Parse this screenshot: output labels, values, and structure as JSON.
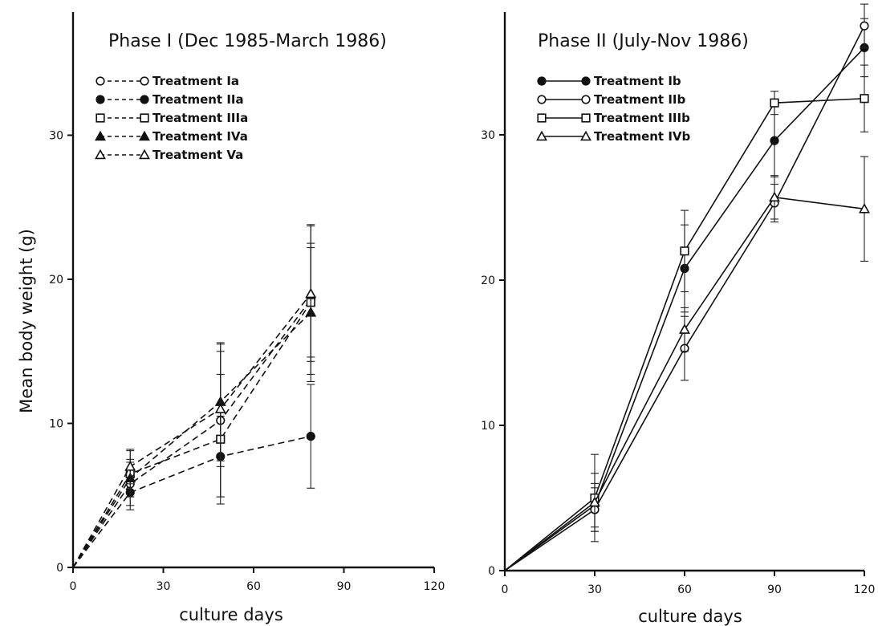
{
  "chart_data": [
    {
      "type": "line",
      "title": "Phase I (Dec 1985-March 1986)",
      "xlabel": "culture days",
      "ylabel": "Mean body weight (g)",
      "xlim": [
        0,
        120
      ],
      "ylim": [
        0,
        38
      ],
      "xticks": [
        0,
        30,
        60,
        90,
        120
      ],
      "yticks": [
        0,
        10,
        20,
        30
      ],
      "x_tick_labels": [
        "0",
        "30",
        "60",
        "90",
        "120"
      ],
      "y_tick_labels": [
        "0",
        "10",
        "20",
        "30"
      ],
      "line_style": "dashed",
      "legend_position": "upper-left",
      "series": [
        {
          "name": "Treatment Ia",
          "marker": "circle-open",
          "x": [
            0,
            19,
            49,
            79
          ],
          "y": [
            0,
            5.8,
            10.2,
            18.6
          ],
          "err": [
            0,
            1.5,
            5.3,
            5.2
          ]
        },
        {
          "name": "Treatment IIa",
          "marker": "circle-filled",
          "x": [
            0,
            19,
            49,
            79
          ],
          "y": [
            0,
            5.2,
            7.7,
            9.1
          ],
          "err": [
            0,
            1.2,
            2.8,
            3.6
          ]
        },
        {
          "name": "Treatment IIIa",
          "marker": "square-open",
          "x": [
            0,
            19,
            49,
            79
          ],
          "y": [
            0,
            6.5,
            8.9,
            18.4
          ],
          "err": [
            0,
            1.6,
            4.5,
            3.8
          ]
        },
        {
          "name": "Treatment IVa",
          "marker": "triangle-filled",
          "x": [
            0,
            19,
            49,
            79
          ],
          "y": [
            0,
            6.2,
            11.5,
            17.7
          ],
          "err": [
            0,
            1.3,
            4.1,
            4.8
          ]
        },
        {
          "name": "Treatment Va",
          "marker": "triangle-open",
          "x": [
            0,
            19,
            49,
            79
          ],
          "y": [
            0,
            7.0,
            11.0,
            19.0
          ],
          "err": [
            0,
            1.2,
            4.0,
            4.7
          ]
        }
      ]
    },
    {
      "type": "line",
      "title": "Phase II (July-Nov 1986)",
      "xlabel": "culture days",
      "ylabel": "",
      "xlim": [
        0,
        120
      ],
      "ylim": [
        0,
        38
      ],
      "xticks": [
        0,
        30,
        60,
        90,
        120
      ],
      "yticks": [
        0,
        10,
        20,
        30
      ],
      "x_tick_labels": [
        "0",
        "30",
        "60",
        "90",
        "120"
      ],
      "y_tick_labels": [
        "0",
        "10",
        "20",
        "30"
      ],
      "line_style": "solid",
      "legend_position": "upper-left",
      "series": [
        {
          "name": "Treatment Ib",
          "marker": "circle-filled",
          "x": [
            0,
            30,
            60,
            90,
            120
          ],
          "y": [
            0,
            4.5,
            20.8,
            29.6,
            36.0
          ],
          "err": [
            0,
            1.5,
            3.0,
            2.5,
            2.0
          ]
        },
        {
          "name": "Treatment IIb",
          "marker": "circle-open",
          "x": [
            0,
            30,
            60,
            90,
            120
          ],
          "y": [
            0,
            4.2,
            15.3,
            25.3,
            37.5
          ],
          "err": [
            0,
            1.5,
            2.2,
            1.3,
            1.5
          ]
        },
        {
          "name": "Treatment IIIb",
          "marker": "square-open",
          "x": [
            0,
            30,
            60,
            90,
            120
          ],
          "y": [
            0,
            5.0,
            22.0,
            32.2,
            32.5
          ],
          "err": [
            0,
            3.0,
            2.8,
            0.8,
            2.3
          ]
        },
        {
          "name": "Treatment IVb",
          "marker": "triangle-open",
          "x": [
            0,
            30,
            60,
            90,
            120
          ],
          "y": [
            0,
            4.7,
            16.6,
            25.7,
            24.9
          ],
          "err": [
            0,
            2.0,
            1.5,
            1.5,
            3.6
          ]
        }
      ]
    }
  ]
}
